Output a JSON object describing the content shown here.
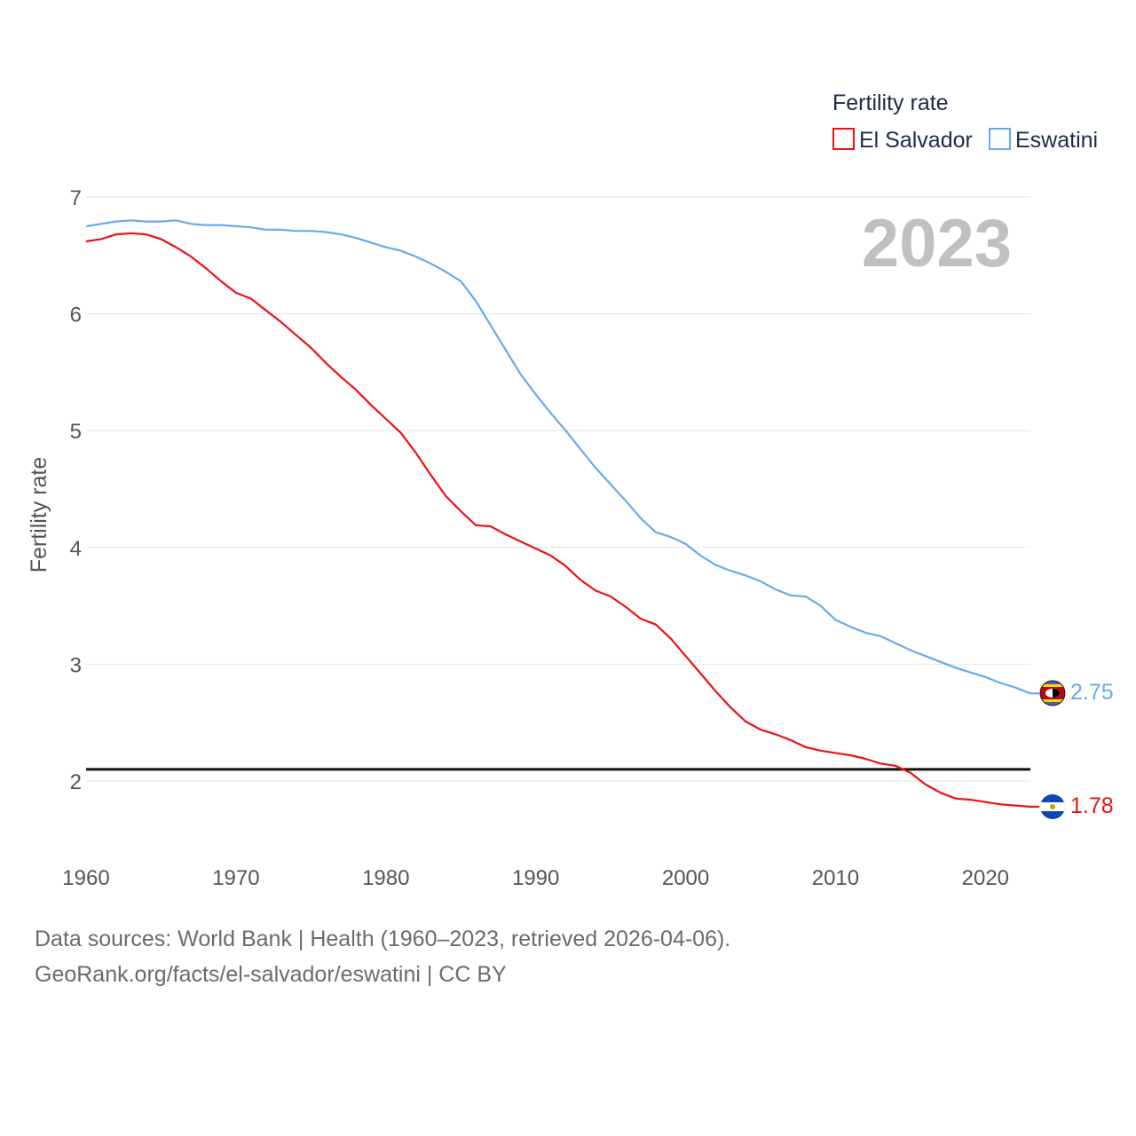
{
  "chart_data": {
    "type": "line",
    "title": "",
    "ylabel": "Fertility rate",
    "xlabel": "",
    "xlim": [
      1960,
      2023
    ],
    "ylim": [
      1.5,
      7.1
    ],
    "xticks": [
      "1960",
      "1970",
      "1980",
      "1990",
      "2000",
      "2010",
      "2020"
    ],
    "yticks": [
      "2",
      "3",
      "4",
      "5",
      "6",
      "7"
    ],
    "legend": {
      "title": "Fertility rate",
      "position": "top-right"
    },
    "year_label": "2023",
    "reference_line": {
      "value": 2.1
    },
    "x": [
      1960,
      1961,
      1962,
      1963,
      1964,
      1965,
      1966,
      1967,
      1968,
      1969,
      1970,
      1971,
      1972,
      1973,
      1974,
      1975,
      1976,
      1977,
      1978,
      1979,
      1980,
      1981,
      1982,
      1983,
      1984,
      1985,
      1986,
      1987,
      1988,
      1989,
      1990,
      1991,
      1992,
      1993,
      1994,
      1995,
      1996,
      1997,
      1998,
      1999,
      2000,
      2001,
      2002,
      2003,
      2004,
      2005,
      2006,
      2007,
      2008,
      2009,
      2010,
      2011,
      2012,
      2013,
      2014,
      2015,
      2016,
      2017,
      2018,
      2019,
      2020,
      2021,
      2022,
      2023
    ],
    "series": [
      {
        "name": "El Salvador",
        "color": "#ee1111",
        "end_label": "1.78",
        "values": [
          6.62,
          6.64,
          6.68,
          6.69,
          6.68,
          6.64,
          6.57,
          6.49,
          6.39,
          6.28,
          6.18,
          6.13,
          6.03,
          5.93,
          5.82,
          5.71,
          5.58,
          5.46,
          5.35,
          5.22,
          5.1,
          4.98,
          4.81,
          4.62,
          4.44,
          4.31,
          4.19,
          4.18,
          4.11,
          4.05,
          3.99,
          3.93,
          3.84,
          3.72,
          3.63,
          3.58,
          3.49,
          3.39,
          3.34,
          3.22,
          3.07,
          2.92,
          2.77,
          2.63,
          2.51,
          2.44,
          2.4,
          2.35,
          2.29,
          2.26,
          2.24,
          2.22,
          2.19,
          2.15,
          2.13,
          2.07,
          1.97,
          1.9,
          1.85,
          1.84,
          1.82,
          1.8,
          1.79,
          1.78
        ]
      },
      {
        "name": "Eswatini",
        "color": "#66aaee",
        "end_label": "2.75",
        "values": [
          6.75,
          6.77,
          6.79,
          6.8,
          6.79,
          6.79,
          6.8,
          6.77,
          6.76,
          6.76,
          6.75,
          6.74,
          6.72,
          6.72,
          6.71,
          6.71,
          6.7,
          6.68,
          6.65,
          6.61,
          6.57,
          6.54,
          6.49,
          6.43,
          6.36,
          6.28,
          6.11,
          5.9,
          5.69,
          5.48,
          5.31,
          5.15,
          5.0,
          4.84,
          4.68,
          4.54,
          4.4,
          4.25,
          4.13,
          4.09,
          4.03,
          3.93,
          3.85,
          3.8,
          3.76,
          3.71,
          3.64,
          3.59,
          3.58,
          3.5,
          3.38,
          3.32,
          3.27,
          3.24,
          3.18,
          3.12,
          3.07,
          3.02,
          2.97,
          2.93,
          2.89,
          2.84,
          2.8,
          2.75
        ]
      }
    ]
  },
  "footer": {
    "line1": "Data sources: World Bank | Health (1960–2023, retrieved 2026-04-06).",
    "line2": "GeoRank.org/facts/el-salvador/eswatini | CC BY"
  }
}
